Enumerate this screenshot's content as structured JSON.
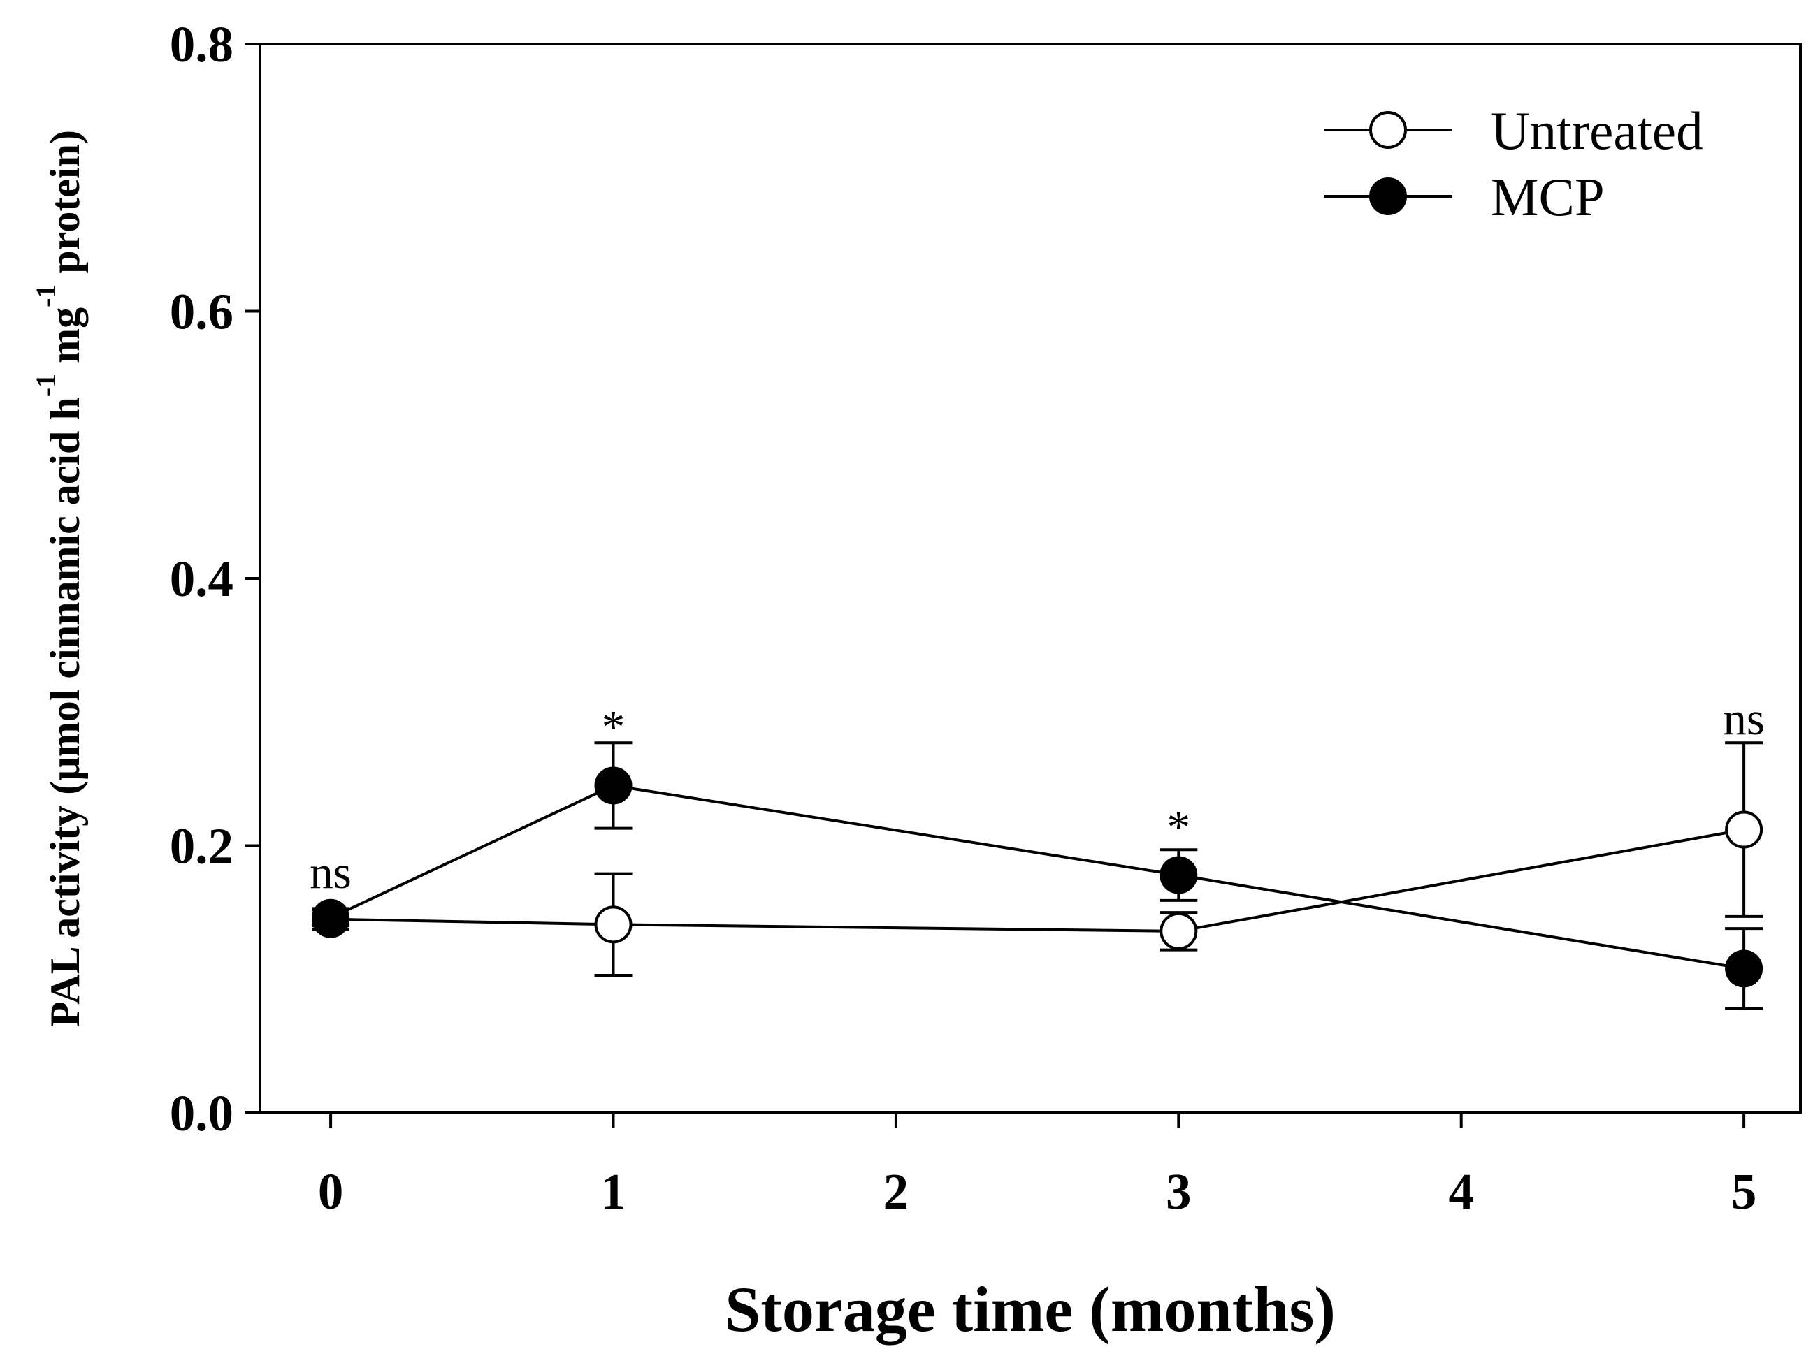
{
  "chart_data": {
    "type": "line",
    "title": "",
    "xlabel": "Storage time (months)",
    "ylabel": {
      "text": "PAL activity (µmol cinnamic acid h",
      "sup1": "-1",
      "mid": " mg",
      "sup2": "-1",
      "end": " protein)"
    },
    "xlim": [
      -0.25,
      5.2
    ],
    "ylim": [
      0,
      0.8
    ],
    "xticks": [
      "0",
      "1",
      "2",
      "3",
      "4",
      "5"
    ],
    "yticks": [
      "0.0",
      "0.2",
      "0.4",
      "0.6",
      "0.8"
    ],
    "grid": false,
    "legend_position": "top-right",
    "series": [
      {
        "name": "Untreated",
        "marker": "open-circle",
        "x": [
          0,
          1,
          3,
          5
        ],
        "y": [
          0.145,
          0.141,
          0.136,
          0.212
        ],
        "err": [
          0.008,
          0.038,
          0.014,
          0.065
        ]
      },
      {
        "name": "MCP",
        "marker": "filled-circle",
        "x": [
          0,
          1,
          3,
          5
        ],
        "y": [
          0.146,
          0.245,
          0.178,
          0.108
        ],
        "err": [
          0.006,
          0.032,
          0.019,
          0.03
        ]
      }
    ],
    "annotations": [
      {
        "x": 0,
        "y": 0.18,
        "text": "ns"
      },
      {
        "x": 1,
        "y": 0.295,
        "text": "*"
      },
      {
        "x": 3,
        "y": 0.22,
        "text": "*"
      },
      {
        "x": 5,
        "y": 0.295,
        "text": "ns"
      }
    ]
  }
}
